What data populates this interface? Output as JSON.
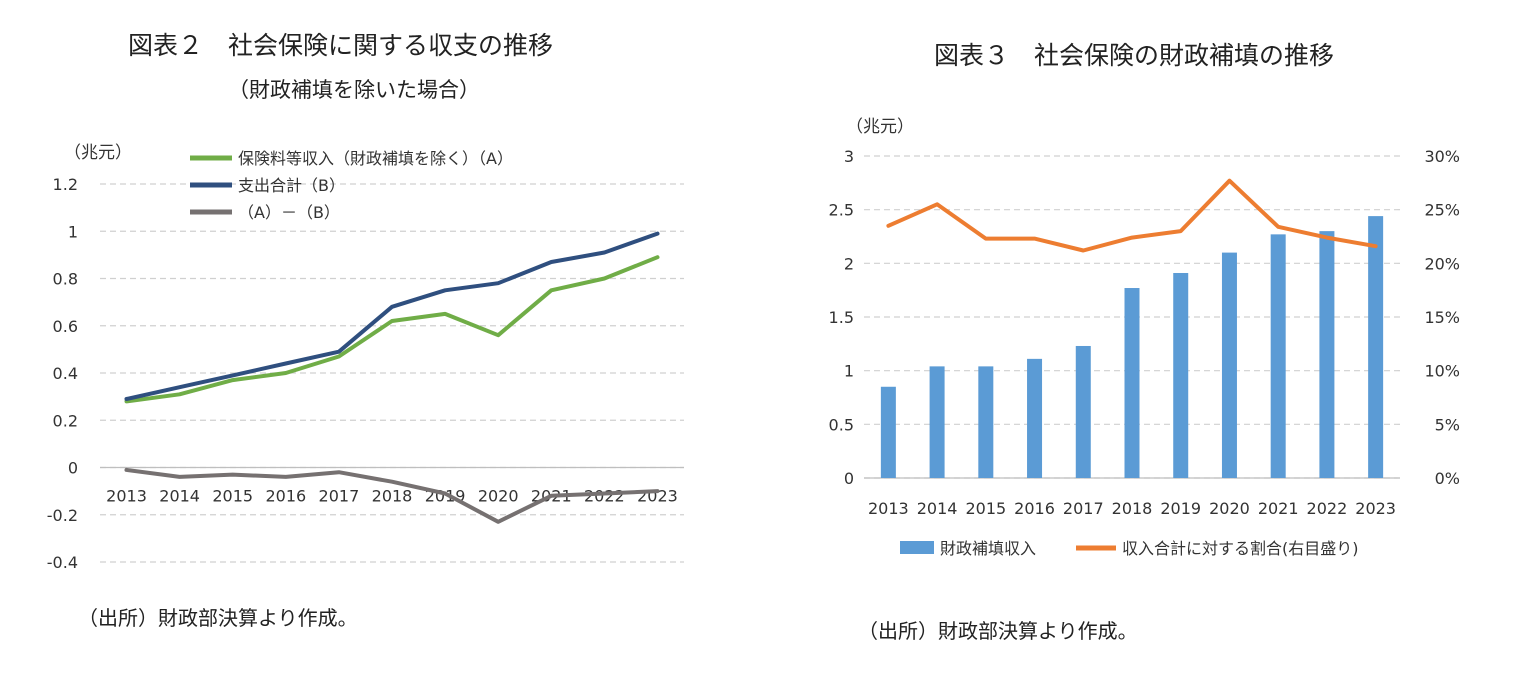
{
  "left": {
    "title": "図表２　社会保険に関する収支の推移",
    "subtitle": "（財政補填を除いた場合）",
    "source": "（出所）財政部決算より作成。"
  },
  "right": {
    "title": "図表３　社会保険の財政補填の推移",
    "source": "（出所）財政部決算より作成。"
  },
  "chart_data": [
    {
      "type": "line",
      "unit_label": "（兆元）",
      "x": [
        "2013",
        "2014",
        "2015",
        "2016",
        "2017",
        "2018",
        "2019",
        "2020",
        "2021",
        "2022",
        "2023"
      ],
      "yticks": [
        "1.2",
        "1",
        "0.8",
        "0.6",
        "0.4",
        "0.2",
        "0",
        "-0.2",
        "-0.4"
      ],
      "ylim": [
        -0.4,
        1.2
      ],
      "grid": true,
      "legend_position": "top-left",
      "series": [
        {
          "name": "保険料等収入（財政補填を除く）（A）",
          "color": "#70ad47",
          "values": [
            0.28,
            0.31,
            0.37,
            0.4,
            0.47,
            0.62,
            0.65,
            0.56,
            0.75,
            0.8,
            0.89
          ]
        },
        {
          "name": "支出合計（B）",
          "color": "#2f4f7f",
          "values": [
            0.29,
            0.34,
            0.39,
            0.44,
            0.49,
            0.68,
            0.75,
            0.78,
            0.87,
            0.91,
            0.99
          ]
        },
        {
          "name": "（A）－（B）",
          "color": "#767171",
          "values": [
            -0.01,
            -0.04,
            -0.03,
            -0.04,
            -0.02,
            -0.06,
            -0.11,
            -0.23,
            -0.12,
            -0.11,
            -0.1
          ]
        }
      ]
    },
    {
      "type": "bar",
      "unit_label": "（兆元）",
      "categories": [
        "2013",
        "2014",
        "2015",
        "2016",
        "2017",
        "2018",
        "2019",
        "2020",
        "2021",
        "2022",
        "2023"
      ],
      "yticks_left": [
        "3",
        "2.5",
        "2",
        "1.5",
        "1",
        "0.5",
        "0"
      ],
      "yticks_right": [
        "30%",
        "25%",
        "20%",
        "15%",
        "10%",
        "5%",
        "0%"
      ],
      "ylim_left": [
        0,
        3
      ],
      "ylim_right": [
        0,
        30
      ],
      "grid": true,
      "legend_position": "bottom",
      "series": [
        {
          "name": "財政補填収入",
          "type": "bar",
          "axis": "left",
          "color": "#5b9bd5",
          "values": [
            0.85,
            1.04,
            1.04,
            1.11,
            1.23,
            1.77,
            1.91,
            2.1,
            2.27,
            2.3,
            2.44
          ]
        },
        {
          "name": "収入合計に対する割合(右目盛り)",
          "type": "line",
          "axis": "right",
          "color": "#ed7d31",
          "values": [
            23.5,
            25.5,
            22.3,
            22.3,
            21.2,
            22.4,
            23.0,
            27.7,
            23.4,
            22.4,
            21.6
          ]
        }
      ]
    }
  ]
}
